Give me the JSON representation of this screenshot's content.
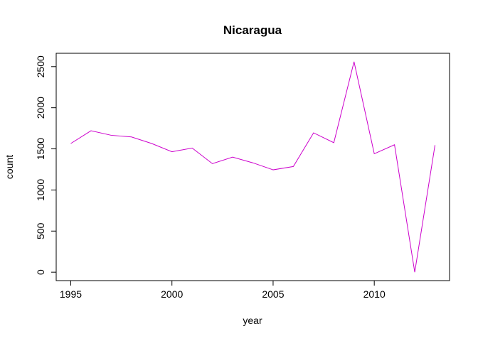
{
  "chart_data": {
    "type": "line",
    "title": "Nicaragua",
    "xlabel": "year",
    "ylabel": "count",
    "x": [
      1995,
      1996,
      1997,
      1998,
      1999,
      2000,
      2001,
      2002,
      2003,
      2004,
      2005,
      2006,
      2007,
      2008,
      2009,
      2010,
      2011,
      2012,
      2013
    ],
    "series": [
      {
        "values": [
          1565,
          1720,
          1665,
          1645,
          1565,
          1465,
          1510,
          1320,
          1400,
          1330,
          1245,
          1285,
          1695,
          1575,
          2560,
          1440,
          1550,
          0,
          1545
        ],
        "color": "#cc00cc"
      }
    ],
    "xlim": [
      1994.28,
      2013.72
    ],
    "ylim": [
      -102.4,
      2662.4
    ],
    "xticks": [
      1995,
      2000,
      2005,
      2010
    ],
    "yticks": [
      0,
      500,
      1000,
      1500,
      2000,
      2500
    ],
    "xtick_labels": [
      "1995",
      "2000",
      "2005",
      "2010"
    ],
    "ytick_labels": [
      "0",
      "500",
      "1000",
      "1500",
      "2000",
      "2500"
    ],
    "grid": false,
    "legend": "none"
  }
}
